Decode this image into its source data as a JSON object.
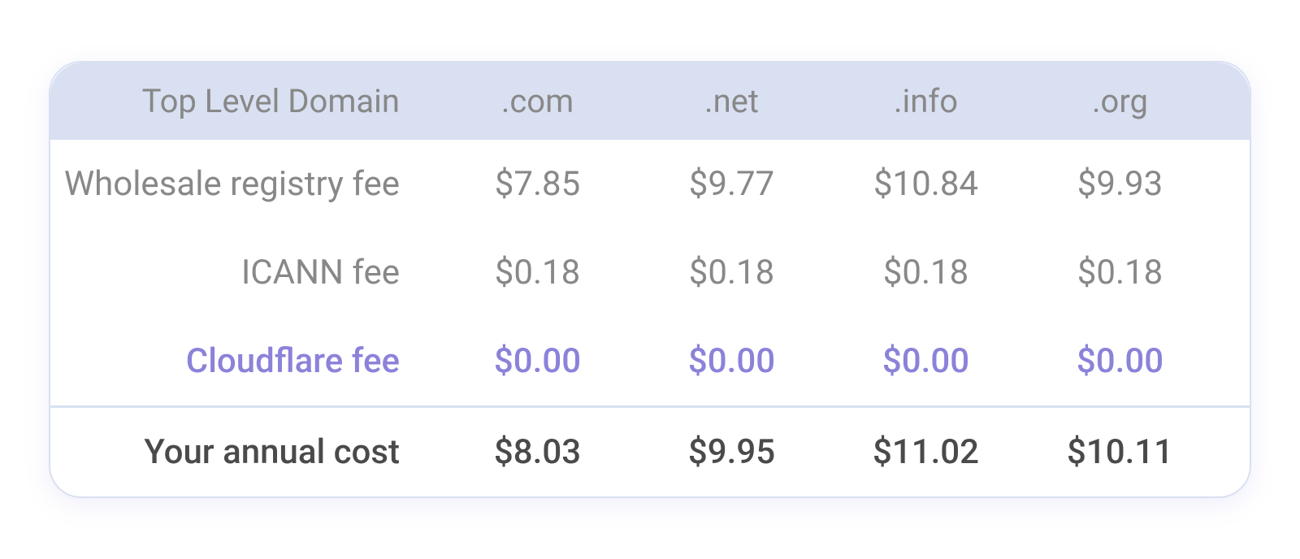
{
  "table": {
    "type": "table",
    "columns": [
      "Top Level Domain",
      ".com",
      ".net",
      ".info",
      ".org"
    ],
    "rows": [
      {
        "label": "Wholesale registry fee",
        "values": [
          "$7.85",
          "$9.77",
          "$10.84",
          "$9.93"
        ],
        "style": "normal"
      },
      {
        "label": "ICANN fee",
        "values": [
          "$0.18",
          "$0.18",
          "$0.18",
          "$0.18"
        ],
        "style": "normal"
      },
      {
        "label": "Cloudflare fee",
        "values": [
          "$0.00",
          "$0.00",
          "$0.00",
          "$0.00"
        ],
        "style": "highlight"
      },
      {
        "label": "Your annual cost",
        "values": [
          "$8.03",
          "$9.95",
          "$11.02",
          "$10.11"
        ],
        "style": "total"
      }
    ],
    "colors": {
      "header_background": "#d9e0f2",
      "header_text": "#888888",
      "normal_text": "#888888",
      "highlight_text": "#8b82d9",
      "total_text": "#4a4a4a",
      "border": "#d9e0f2",
      "background": "#ffffff",
      "shadow": "rgba(150, 140, 220, 0.15)"
    },
    "typography": {
      "header_fontsize": 40,
      "body_fontsize": 42,
      "header_weight": 400,
      "normal_weight": 400,
      "highlight_weight": 500,
      "total_weight": 500
    },
    "layout": {
      "border_radius": 40,
      "column_widths": [
        "480px",
        "1fr",
        "1fr",
        "1fr",
        "1fr"
      ],
      "row_padding": 30
    }
  }
}
